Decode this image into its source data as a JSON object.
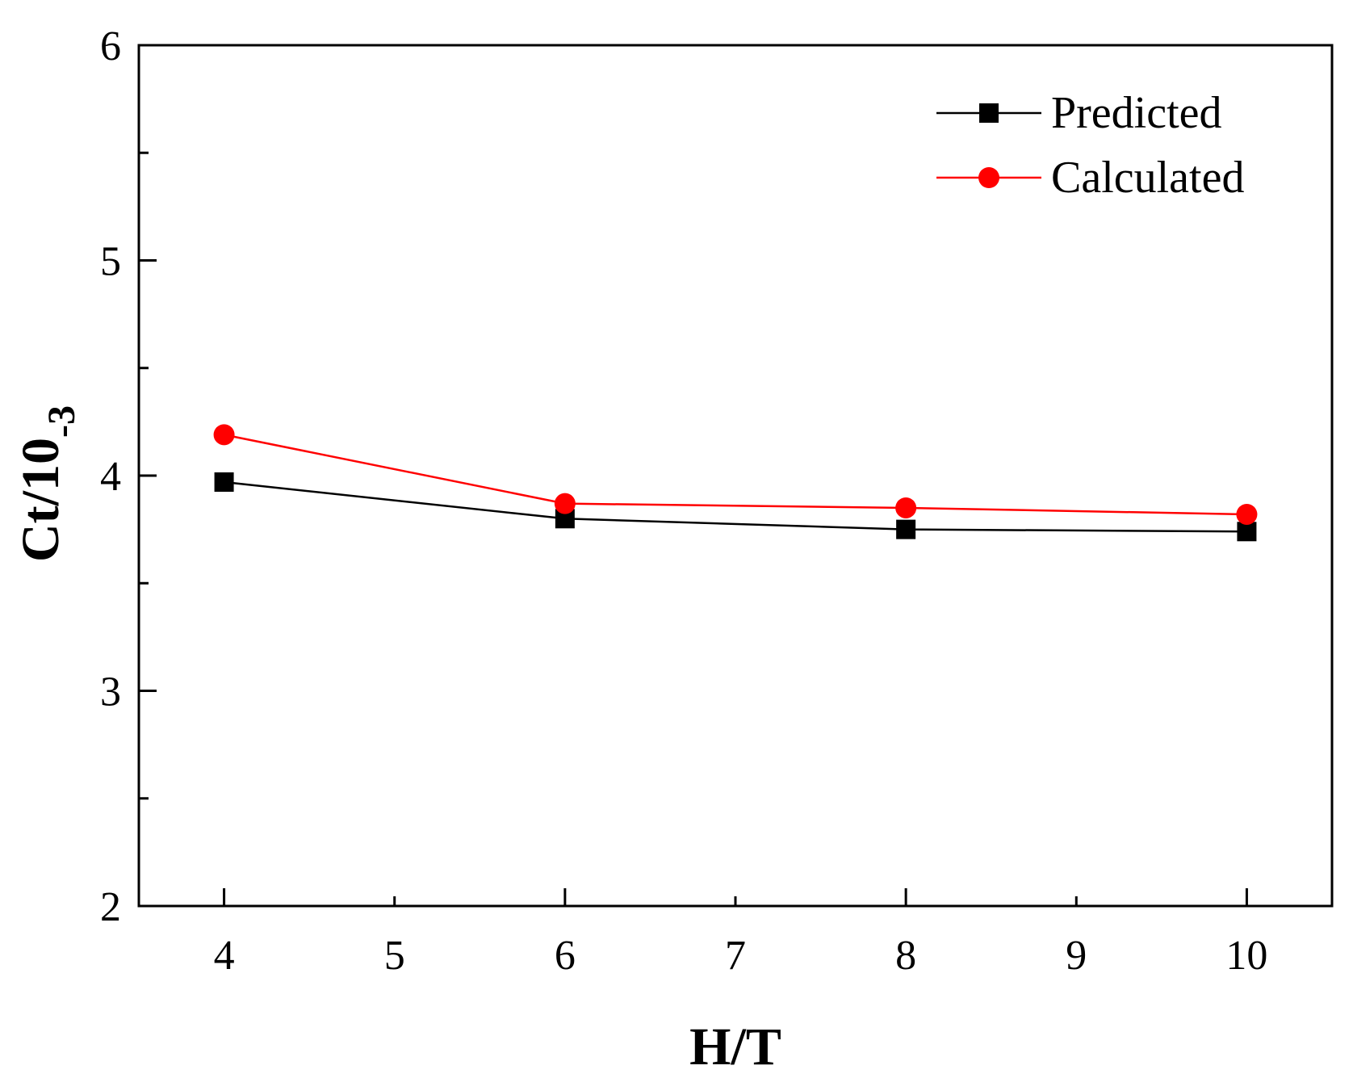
{
  "chart_data": {
    "type": "line",
    "x": [
      4,
      6,
      8,
      10
    ],
    "series": [
      {
        "name": "Predicted",
        "values": [
          3.97,
          3.8,
          3.75,
          3.74
        ],
        "color": "#000000",
        "marker": "square"
      },
      {
        "name": "Calculated",
        "values": [
          4.19,
          3.87,
          3.85,
          3.82
        ],
        "color": "#ff0000",
        "marker": "circle"
      }
    ],
    "xlabel": "H/T",
    "ylabel_main": "Ct/10",
    "ylabel_sub": "-3",
    "xlim": [
      3.5,
      10.5
    ],
    "ylim": [
      2,
      6
    ],
    "xticks": [
      4,
      5,
      6,
      7,
      8,
      9,
      10
    ],
    "yticks": [
      2,
      3,
      4,
      5,
      6
    ],
    "grid": false,
    "legend_position": "top-right"
  }
}
